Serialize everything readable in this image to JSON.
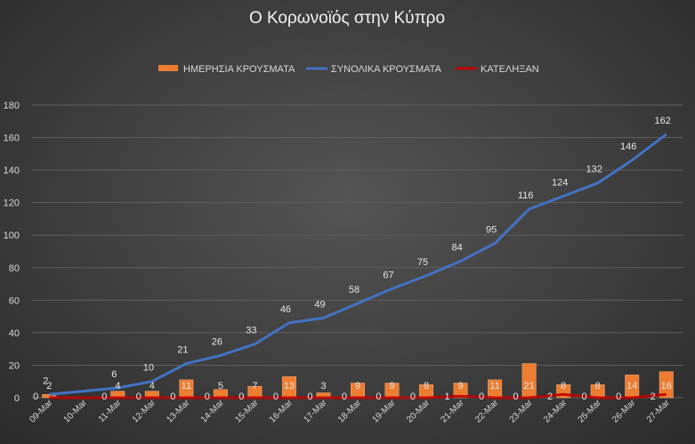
{
  "chart_data": {
    "type": "bar",
    "title": "Ο Κορωνοϊός στην Κύπρο",
    "categories": [
      "09-Mar",
      "10-Mar",
      "11-Mar",
      "12-Mar",
      "13-Mar",
      "14-Mar",
      "15-Mar",
      "16-Mar",
      "17-Mar",
      "18-Mar",
      "19-Mar",
      "20-Mar",
      "21-Mar",
      "22-Mar",
      "23-Mar",
      "24-Mar",
      "25-Mar",
      "26-Mar",
      "27-Mar"
    ],
    "ylim": [
      0,
      180
    ],
    "yticks": [
      0,
      20,
      40,
      60,
      80,
      100,
      120,
      140,
      160,
      180
    ],
    "grid": true,
    "legend_position": "top",
    "series": [
      {
        "name": "ΗΜΕΡΗΣΙΑ ΚΡΟΥΣΜΑΤΑ",
        "kind": "bar",
        "color": "#ed7d31",
        "values": [
          2,
          null,
          4,
          4,
          11,
          5,
          7,
          13,
          3,
          9,
          9,
          8,
          9,
          11,
          21,
          8,
          8,
          14,
          16
        ]
      },
      {
        "name": "ΣΥΝΟΛΙΚΑ ΚΡΟΥΣΜΑΤΑ",
        "kind": "line",
        "color": "#4472c4",
        "values": [
          2,
          null,
          6,
          10,
          21,
          26,
          33,
          46,
          49,
          58,
          67,
          75,
          84,
          95,
          116,
          124,
          132,
          146,
          162
        ]
      },
      {
        "name": "ΚΑΤΕΛΗΞΑΝ",
        "kind": "line",
        "color": "#c00000",
        "values": [
          0,
          null,
          0,
          0,
          0,
          0,
          0,
          0,
          0,
          0,
          0,
          0,
          1,
          0,
          0,
          2,
          0,
          0,
          2
        ]
      }
    ]
  }
}
